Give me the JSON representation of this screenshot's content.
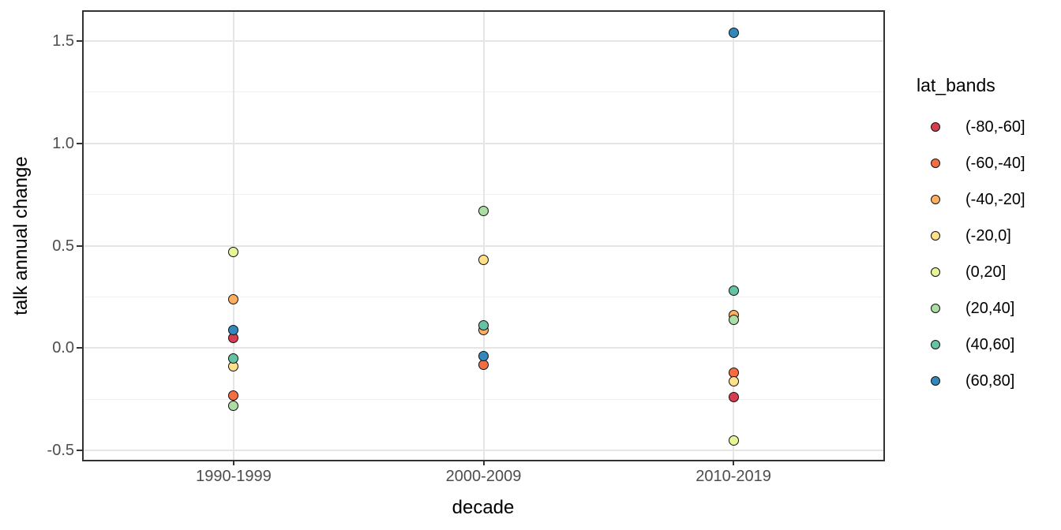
{
  "chart_data": {
    "type": "scatter",
    "title": "",
    "xlabel": "decade",
    "ylabel": "talk annual change",
    "categories": [
      "1990-1999",
      "2000-2009",
      "2010-2019"
    ],
    "y_ticks": [
      -0.5,
      0.0,
      0.5,
      1.0,
      1.5
    ],
    "y_tick_labels": [
      "-0.5",
      "0.0",
      "0.5",
      "1.0",
      "1.5"
    ],
    "y_minor_ticks": [
      -0.25,
      0.25,
      0.75,
      1.25
    ],
    "ylim": [
      -0.545,
      1.642
    ],
    "grid": true,
    "legend_position": "right",
    "legend_title": "lat_bands",
    "point_outline_color": "#111111",
    "series": [
      {
        "name": "(-80,-60]",
        "color": "#d53e4f",
        "points": [
          {
            "decade": "1990-1999",
            "value": 0.05
          },
          {
            "decade": "2010-2019",
            "value": -0.24
          }
        ]
      },
      {
        "name": "(-60,-40]",
        "color": "#f46d43",
        "points": [
          {
            "decade": "1990-1999",
            "value": -0.23
          },
          {
            "decade": "2000-2009",
            "value": -0.08
          },
          {
            "decade": "2010-2019",
            "value": -0.12
          }
        ]
      },
      {
        "name": "(-40,-20]",
        "color": "#fdae61",
        "points": [
          {
            "decade": "1990-1999",
            "value": 0.24
          },
          {
            "decade": "2000-2009",
            "value": 0.09
          },
          {
            "decade": "2010-2019",
            "value": 0.16
          }
        ]
      },
      {
        "name": "(-20,0]",
        "color": "#fee08b",
        "points": [
          {
            "decade": "1990-1999",
            "value": -0.09
          },
          {
            "decade": "2000-2009",
            "value": 0.43
          },
          {
            "decade": "2010-2019",
            "value": -0.16
          }
        ]
      },
      {
        "name": "(0,20]",
        "color": "#e6f598",
        "points": [
          {
            "decade": "1990-1999",
            "value": 0.47
          },
          {
            "decade": "2010-2019",
            "value": -0.45
          }
        ]
      },
      {
        "name": "(20,40]",
        "color": "#abdda4",
        "points": [
          {
            "decade": "1990-1999",
            "value": -0.28
          },
          {
            "decade": "2000-2009",
            "value": 0.67
          },
          {
            "decade": "2010-2019",
            "value": 0.14
          }
        ]
      },
      {
        "name": "(40,60]",
        "color": "#66c2a5",
        "points": [
          {
            "decade": "1990-1999",
            "value": -0.05
          },
          {
            "decade": "2000-2009",
            "value": 0.11
          },
          {
            "decade": "2010-2019",
            "value": 0.28
          }
        ]
      },
      {
        "name": "(60,80]",
        "color": "#3288bd",
        "points": [
          {
            "decade": "1990-1999",
            "value": 0.09
          },
          {
            "decade": "2000-2009",
            "value": -0.04
          },
          {
            "decade": "2010-2019",
            "value": 1.54
          }
        ]
      }
    ]
  }
}
